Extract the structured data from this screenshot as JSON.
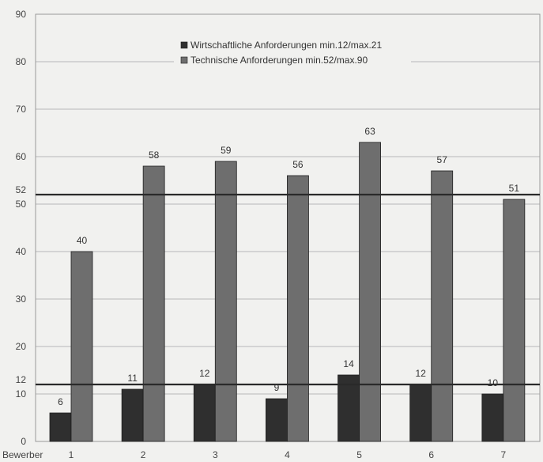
{
  "chart_data": {
    "type": "bar",
    "x_axis_title": "Bewerber",
    "categories": [
      "1",
      "2",
      "3",
      "4",
      "5",
      "6",
      "7"
    ],
    "series": [
      {
        "name": "Wirtschaftliche Anforderungen min.12/max.21",
        "values": [
          6,
          11,
          12,
          9,
          14,
          12,
          10
        ],
        "color": "#2f2f2f"
      },
      {
        "name": "Technische Anforderungen min.52/max.90",
        "values": [
          40,
          58,
          59,
          56,
          63,
          57,
          51
        ],
        "color": "#6e6e6e"
      }
    ],
    "ylim": [
      0,
      90
    ],
    "yticks": [
      0,
      10,
      20,
      30,
      40,
      50,
      60,
      70,
      80,
      90
    ],
    "threshold_lines": [
      {
        "value": 52,
        "label": "52"
      },
      {
        "value": 12,
        "label": "12"
      }
    ],
    "grid": true,
    "legend_position": "top-center"
  }
}
